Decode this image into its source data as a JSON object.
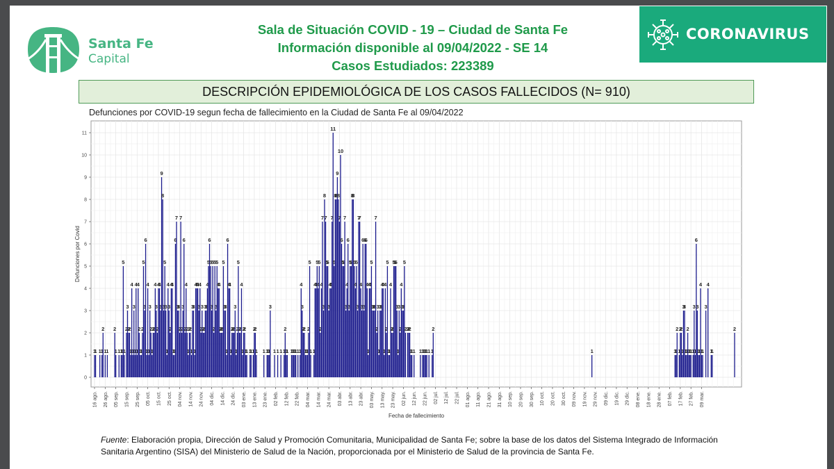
{
  "header": {
    "logo": {
      "name": "Santa Fe",
      "subname": "Capital"
    },
    "title_line1": "Sala de Situación COVID - 19 – Ciudad de Santa Fe",
    "title_line2": "Información disponible al 09/04/2022 - SE 14",
    "title_line3": "Casos Estudiados: 223389",
    "badge": "CORONAVIRUS"
  },
  "banner": {
    "text": "DESCRIPCIÓN EPIDEMIOLÓGICA DE LOS CASOS FALLECIDOS  (N= 910)"
  },
  "colors": {
    "brand_green": "#46b583",
    "title_green": "#1f9a4a",
    "badge_bg": "#1aaa7c",
    "banner_bg": "#e2efda",
    "bar": "#1a1a8c"
  },
  "footer": {
    "fuente_label": "Fuente",
    "text": ": Elaboración propia, Dirección de Salud y Promoción Comunitaria, Municipalidad de Santa Fe; sobre la base de los datos del Sistema Integrado de Información Sanitaria Argentino (SISA) del Ministerio de Salud de la Nación, proporcionada por el Ministerio de Salud de la provincia de Santa Fe."
  },
  "chart_data": {
    "type": "bar",
    "title": "Defunciones por COVID-19 segun fecha de fallecimiento en la Ciudad de Santa Fe al 09/04/2022",
    "xlabel": "Fecha de fallecimiento",
    "ylabel": "Defunciones por Covid",
    "ylim": [
      0,
      11
    ],
    "yticks": [
      0,
      1,
      2,
      3,
      4,
      5,
      6,
      7,
      8,
      9,
      10,
      11
    ],
    "grid": true,
    "x_start": "2020-08-16",
    "x_end": "2022-03-09",
    "xtick_labels": [
      "16 ago.",
      "26 ago.",
      "05 sep.",
      "15 sep.",
      "25 sep.",
      "05 oct.",
      "15 oct.",
      "25 oct.",
      "04 nov.",
      "14 nov.",
      "24 nov.",
      "04 dic.",
      "14 dic.",
      "24 dic.",
      "03 ene.",
      "13 ene.",
      "23 ene.",
      "02 feb.",
      "12 feb.",
      "22 feb.",
      "04 mar.",
      "14 mar.",
      "24 mar.",
      "03 abr.",
      "13 abr.",
      "23 abr.",
      "03 may.",
      "13 may.",
      "23 may.",
      "02 jun.",
      "12 jun.",
      "22 jun.",
      "02 jul.",
      "12 jul.",
      "22 jul.",
      "01 ago.",
      "11 ago.",
      "21 ago.",
      "31 ago.",
      "10 sep.",
      "20 sep.",
      "30 sep.",
      "10 oct.",
      "20 oct.",
      "30 oct.",
      "09 nov.",
      "19 nov.",
      "29 nov.",
      "09 dic.",
      "19 dic.",
      "29 dic.",
      "08 ene.",
      "18 ene.",
      "28 ene.",
      "07 feb.",
      "17 feb.",
      "27 feb.",
      "09 mar."
    ],
    "daily_values_note": "one value per day starting at x_start; approximated from bar heights",
    "values": [
      1,
      1,
      0,
      0,
      0,
      1,
      0,
      1,
      2,
      0,
      1,
      0,
      1,
      0,
      0,
      0,
      0,
      0,
      0,
      2,
      1,
      0,
      0,
      1,
      0,
      1,
      1,
      5,
      1,
      0,
      2,
      3,
      2,
      2,
      1,
      4,
      1,
      3,
      1,
      4,
      1,
      4,
      2,
      1,
      1,
      2,
      5,
      3,
      6,
      1,
      4,
      1,
      3,
      2,
      1,
      2,
      2,
      4,
      3,
      2,
      4,
      4,
      3,
      9,
      8,
      3,
      5,
      3,
      1,
      4,
      3,
      2,
      4,
      4,
      1,
      1,
      6,
      7,
      3,
      3,
      2,
      7,
      2,
      3,
      6,
      2,
      4,
      2,
      1,
      2,
      2,
      1,
      3,
      3,
      1,
      4,
      4,
      4,
      3,
      4,
      2,
      3,
      2,
      2,
      3,
      3,
      4,
      5,
      6,
      5,
      3,
      5,
      2,
      5,
      3,
      5,
      4,
      4,
      2,
      2,
      2,
      5,
      3,
      3,
      1,
      6,
      4,
      4,
      1,
      2,
      2,
      2,
      3,
      1,
      2,
      5,
      2,
      2,
      4,
      1,
      2,
      2,
      1,
      1,
      0,
      0,
      1,
      1,
      0,
      1,
      2,
      2,
      1,
      0,
      0,
      0,
      0,
      0,
      0,
      1,
      0,
      0,
      1,
      1,
      1,
      3,
      0,
      0,
      0,
      1,
      0,
      0,
      1,
      0,
      0,
      1,
      0,
      0,
      1,
      2,
      1,
      1,
      0,
      0,
      0,
      1,
      1,
      1,
      1,
      1,
      0,
      1,
      0,
      1,
      4,
      3,
      2,
      2,
      1,
      1,
      1,
      2,
      5,
      1,
      0,
      0,
      1,
      4,
      4,
      5,
      4,
      5,
      2,
      4,
      7,
      3,
      8,
      7,
      5,
      5,
      3,
      4,
      4,
      7,
      11,
      5,
      8,
      8,
      9,
      8,
      7,
      10,
      6,
      5,
      5,
      7,
      3,
      4,
      6,
      3,
      5,
      5,
      8,
      8,
      5,
      4,
      5,
      3,
      7,
      7,
      4,
      3,
      6,
      3,
      6,
      6,
      4,
      1,
      4,
      4,
      5,
      3,
      3,
      3,
      7,
      2,
      3,
      1,
      3,
      3,
      4,
      4,
      1,
      4,
      2,
      5,
      1,
      1,
      4,
      2,
      2,
      5,
      5,
      5,
      3,
      1,
      3,
      2,
      4,
      3,
      3,
      5,
      2,
      0,
      2,
      2,
      2,
      1,
      1,
      0,
      1,
      0,
      0,
      0,
      0,
      0,
      1,
      0,
      1,
      1,
      1,
      1,
      1,
      0,
      1,
      0,
      0,
      1,
      2,
      0,
      0,
      0,
      0,
      0,
      0,
      0,
      0,
      0,
      0,
      0,
      0,
      0,
      0,
      0,
      0,
      0,
      0,
      0,
      0,
      0,
      0,
      0,
      0,
      0,
      0,
      0,
      0,
      0,
      0,
      0,
      0,
      0,
      0,
      0,
      0,
      0,
      0,
      0,
      0,
      0,
      0,
      0,
      0,
      0,
      0,
      0,
      0,
      0,
      0,
      0,
      0,
      0,
      0,
      0,
      0,
      0,
      0,
      0,
      0,
      0,
      0,
      0,
      0,
      0,
      0,
      0,
      0,
      0,
      0,
      0,
      0,
      0,
      0,
      0,
      0,
      0,
      0,
      0,
      0,
      0,
      0,
      0,
      0,
      0,
      0,
      0,
      0,
      0,
      0,
      0,
      0,
      0,
      0,
      0,
      0,
      0,
      0,
      0,
      0,
      0,
      0,
      0,
      0,
      0,
      0,
      0,
      0,
      0,
      0,
      0,
      0,
      0,
      0,
      0,
      0,
      0,
      0,
      0,
      0,
      0,
      0,
      0,
      0,
      0,
      0,
      0,
      0,
      0,
      0,
      0,
      0,
      0,
      0,
      0,
      0,
      0,
      0,
      0,
      0,
      0,
      0,
      0,
      0,
      0,
      0,
      0,
      0,
      1,
      0,
      0,
      0,
      0,
      0,
      0,
      0,
      0,
      0,
      0,
      0,
      0,
      0,
      0,
      0,
      0,
      0,
      0,
      0,
      0,
      0,
      0,
      0,
      0,
      0,
      0,
      0,
      0,
      0,
      0,
      0,
      0,
      0,
      0,
      0,
      0,
      0,
      0,
      0,
      0,
      0,
      0,
      0,
      0,
      0,
      0,
      0,
      0,
      0,
      0,
      0,
      0,
      0,
      0,
      0,
      0,
      0,
      0,
      0,
      0,
      0,
      0,
      0,
      0,
      0,
      0,
      0,
      0,
      0,
      0,
      0,
      0,
      0,
      0,
      0,
      0,
      0,
      1,
      1,
      2,
      0,
      1,
      2,
      2,
      1,
      3,
      3,
      1,
      1,
      2,
      1,
      1,
      1,
      0,
      1,
      3,
      1,
      6,
      3,
      1,
      1,
      4,
      1,
      1,
      0,
      0,
      3,
      0,
      4,
      0,
      0,
      1,
      1,
      0,
      0,
      0,
      0,
      0,
      0,
      0,
      0,
      0,
      0,
      0,
      0,
      0,
      0,
      0,
      0,
      0,
      0,
      0,
      0,
      2
    ]
  }
}
